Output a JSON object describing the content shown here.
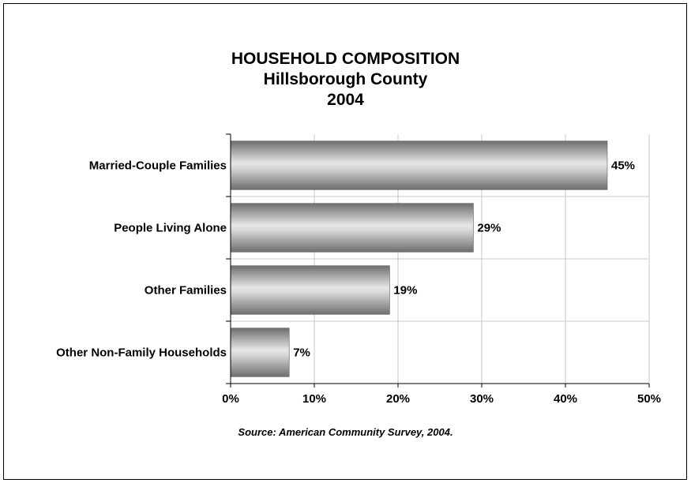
{
  "chart_data": {
    "type": "bar",
    "orientation": "horizontal",
    "title": "HOUSEHOLD COMPOSITION",
    "subtitle": "Hillsborough County",
    "year_label": "2004",
    "categories": [
      "Married-Couple Families",
      "People Living Alone",
      "Other Families",
      "Other Non-Family Households"
    ],
    "values": [
      45,
      29,
      19,
      7
    ],
    "value_labels": [
      "45%",
      "29%",
      "19%",
      "7%"
    ],
    "x_ticks": [
      "0%",
      "10%",
      "20%",
      "30%",
      "40%",
      "50%"
    ],
    "xlim": [
      0,
      50
    ],
    "xlabel": "",
    "ylabel": "",
    "grid": true,
    "legend": "none",
    "bar_color": "#8a8a8a",
    "source": "Source:  American Community Survey, 2004."
  }
}
